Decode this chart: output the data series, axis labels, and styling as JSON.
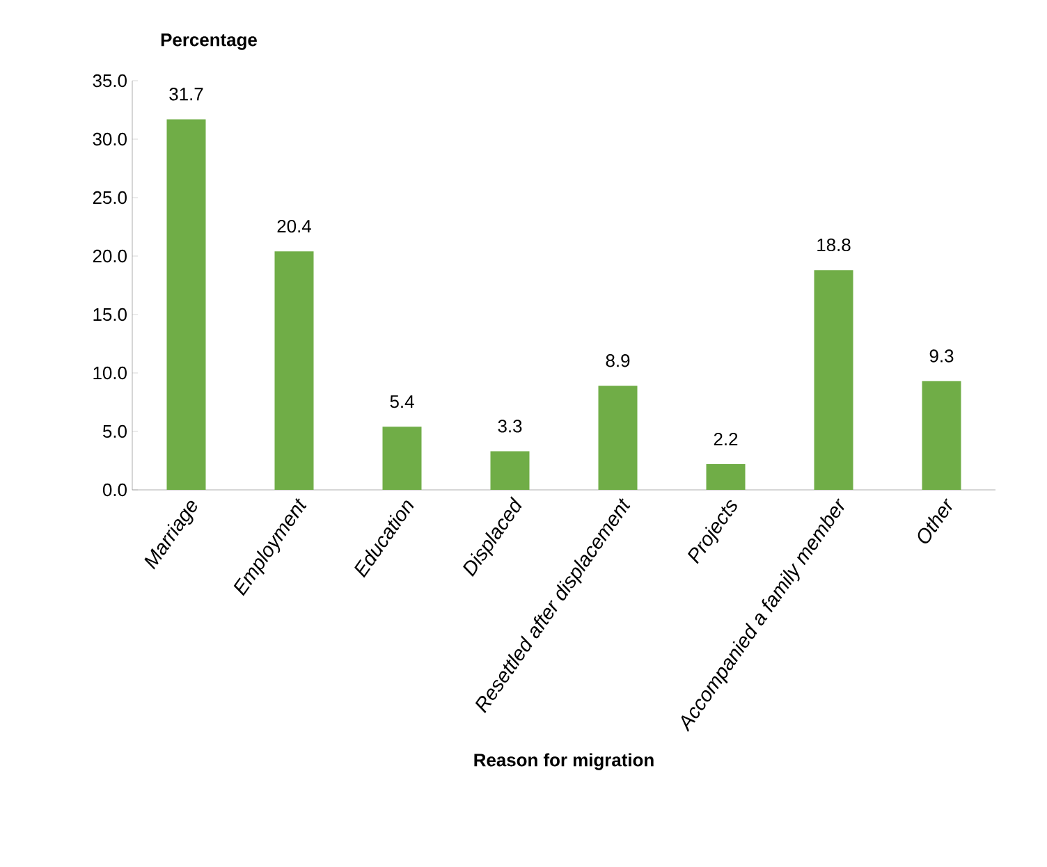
{
  "chart_data": {
    "type": "bar",
    "ylabel": "Percentage",
    "xlabel": "Reason for migration",
    "categories": [
      "Marriage",
      "Employment",
      "Education",
      "Displaced",
      "Resettled after displacement",
      "Projects",
      "Accompanied a family member",
      "Other"
    ],
    "values": [
      31.7,
      20.4,
      5.4,
      3.3,
      8.9,
      2.2,
      18.8,
      9.3
    ],
    "color": "#70ad47",
    "data_labels": true,
    "grid": false,
    "ylim": [
      0,
      35
    ],
    "yticks": [
      {
        "value": 0,
        "label": "0.0"
      },
      {
        "value": 5,
        "label": "5.0"
      },
      {
        "value": 10,
        "label": "10.0"
      },
      {
        "value": 15,
        "label": "15.0"
      },
      {
        "value": 20,
        "label": "20.0"
      },
      {
        "value": 25,
        "label": "25.0"
      },
      {
        "value": 30,
        "label": "30.0"
      },
      {
        "value": 35,
        "label": "35.0"
      }
    ]
  }
}
